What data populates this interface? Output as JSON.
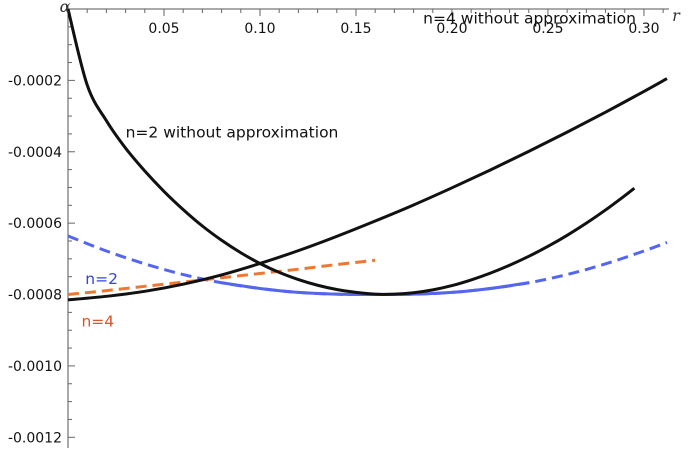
{
  "chart_data": {
    "type": "line",
    "title": "",
    "xlabel": "r",
    "ylabel": "α",
    "xlim": [
      0,
      0.312
    ],
    "ylim": [
      -0.00123,
      0
    ],
    "grid": false,
    "legend": "none",
    "x_ticks": [
      {
        "value": 0.05,
        "label": "0.05"
      },
      {
        "value": 0.1,
        "label": "0.10"
      },
      {
        "value": 0.15,
        "label": "0.15"
      },
      {
        "value": 0.2,
        "label": "0.20"
      },
      {
        "value": 0.25,
        "label": "0.25"
      },
      {
        "value": 0.3,
        "label": "0.30"
      }
    ],
    "y_ticks": [
      {
        "value": -0.0002,
        "label": "-0.0002"
      },
      {
        "value": -0.0004,
        "label": "-0.0004"
      },
      {
        "value": -0.0006,
        "label": "-0.0006"
      },
      {
        "value": -0.0008,
        "label": "-0.0008"
      },
      {
        "value": -0.001,
        "label": "-0.0010"
      },
      {
        "value": -0.0012,
        "label": "-0.0012"
      }
    ],
    "series": [
      {
        "name": "n=2 without approximation",
        "color": "#111111",
        "style": "solid",
        "x": [
          0.0,
          0.01,
          0.02,
          0.03,
          0.04,
          0.05,
          0.06,
          0.07,
          0.08,
          0.09,
          0.1,
          0.11,
          0.12,
          0.13,
          0.14,
          0.15,
          0.16,
          0.17,
          0.18,
          0.19,
          0.2,
          0.21,
          0.22,
          0.23,
          0.24,
          0.25,
          0.26,
          0.27,
          0.28,
          0.29,
          0.295
        ],
        "y": [
          0.0,
          -0.000213,
          -0.000313,
          -0.00039,
          -0.000454,
          -0.000511,
          -0.000562,
          -0.000608,
          -0.000648,
          -0.000683,
          -0.000713,
          -0.000738,
          -0.000758,
          -0.000774,
          -0.000786,
          -0.000794,
          -0.000799,
          -0.000799,
          -0.000795,
          -0.000787,
          -0.000775,
          -0.000759,
          -0.00074,
          -0.000718,
          -0.000693,
          -0.000665,
          -0.000634,
          -0.0006,
          -0.000563,
          -0.000523,
          -0.000502
        ]
      },
      {
        "name": "n=4 without approximation",
        "color": "#111111",
        "style": "solid",
        "x": [
          0.0,
          0.02,
          0.04,
          0.06,
          0.08,
          0.1,
          0.12,
          0.14,
          0.16,
          0.18,
          0.2,
          0.22,
          0.24,
          0.26,
          0.28,
          0.3,
          0.312
        ],
        "y": [
          -0.000815,
          -0.000805,
          -0.000791,
          -0.000771,
          -0.000745,
          -0.000713,
          -0.000677,
          -0.000637,
          -0.000594,
          -0.000549,
          -0.000501,
          -0.000451,
          -0.000399,
          -0.000345,
          -0.000289,
          -0.000231,
          -0.000195
        ]
      },
      {
        "name": "n=2",
        "color": "#5566ee",
        "style": "dashed",
        "x": [
          0.0,
          0.02,
          0.04,
          0.06,
          0.08,
          0.1,
          0.12,
          0.14,
          0.16,
          0.18,
          0.2,
          0.22,
          0.24,
          0.26,
          0.28,
          0.3,
          0.312
        ],
        "y": [
          -0.000636,
          -0.000678,
          -0.000714,
          -0.000744,
          -0.000767,
          -0.000783,
          -0.000794,
          -0.000799,
          -0.0008,
          -0.000799,
          -0.000794,
          -0.000783,
          -0.000767,
          -0.000744,
          -0.000714,
          -0.000678,
          -0.000654
        ]
      },
      {
        "name": "n=4",
        "color": "#ee7733",
        "style": "dashed",
        "x": [
          0.0,
          0.02,
          0.04,
          0.06,
          0.08,
          0.1,
          0.12,
          0.14,
          0.16
        ],
        "y": [
          -0.0008,
          -0.000789,
          -0.000777,
          -0.000765,
          -0.000753,
          -0.000741,
          -0.000729,
          -0.000716,
          -0.000704
        ]
      }
    ],
    "solid_overlay": {
      "name": "n=2 (solid segment)",
      "color": "#5566ee",
      "x_range": [
        0.08,
        0.24
      ]
    },
    "annotations": [
      {
        "text": "n=2 without approximation",
        "x": 0.03,
        "y": -0.00036,
        "color": "#111111"
      },
      {
        "text": "n=4 without approximation",
        "x": 0.185,
        "y": -4e-05,
        "color": "#111111"
      },
      {
        "text": "n=2",
        "x": 0.009,
        "y": -0.00077,
        "color": "#3344dd"
      },
      {
        "text": "n=4",
        "x": 0.007,
        "y": -0.00089,
        "color": "#dd5522"
      }
    ]
  }
}
